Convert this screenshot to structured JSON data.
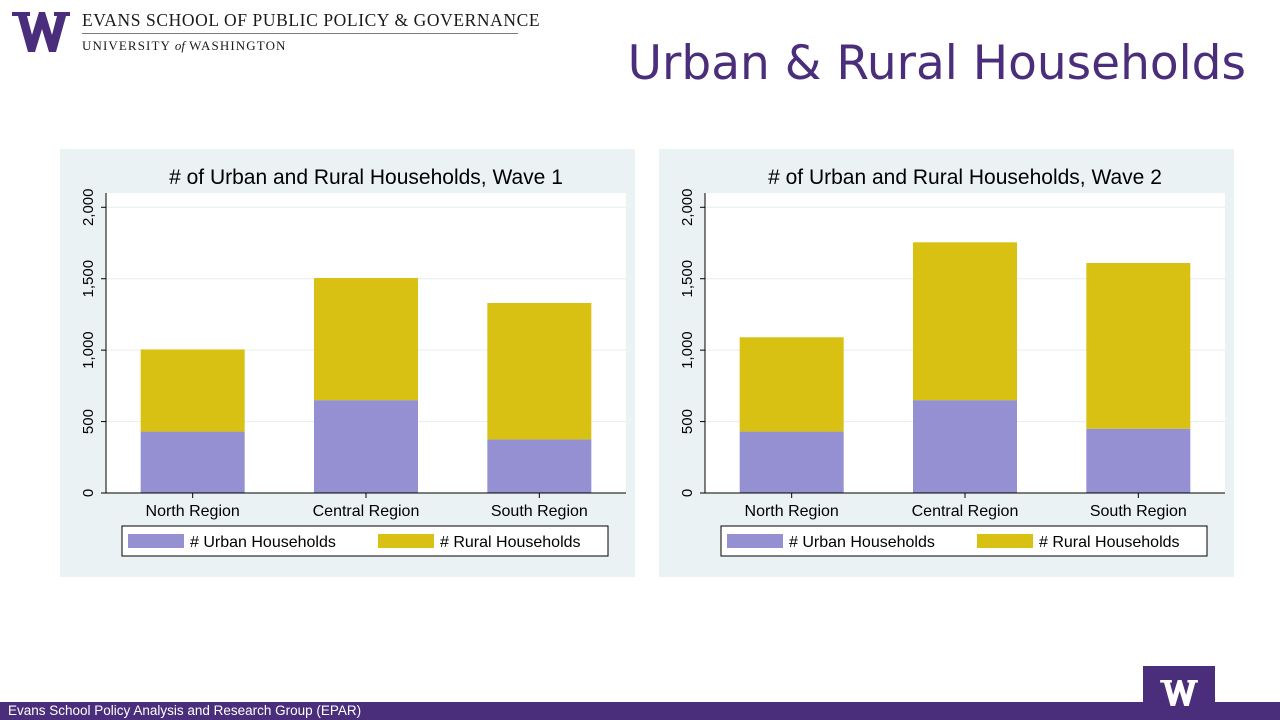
{
  "header": {
    "school_name": "EVANS SCHOOL OF PUBLIC POLICY & GOVERNANCE",
    "university_prefix": "UNIVERSITY",
    "university_of": "of",
    "university_suffix": "WASHINGTON",
    "logo_icon": "uw-w-logo-icon",
    "brand_color": "#4b2e7b"
  },
  "slide": {
    "title": "Urban & Rural Households"
  },
  "footer": {
    "text": "Evans School Policy Analysis and Research Group (EPAR)",
    "logo_icon": "uw-w-logo-icon"
  },
  "chart_data": [
    {
      "type": "bar",
      "stacked": true,
      "title": "# of Urban and Rural Households, Wave 1",
      "xlabel": "",
      "ylabel": "",
      "categories": [
        "North Region",
        "Central Region",
        "South Region"
      ],
      "series": [
        {
          "name": "# Urban Households",
          "values": [
            430,
            650,
            375
          ],
          "color": "#9590d2"
        },
        {
          "name": "# Rural Households",
          "values": [
            575,
            855,
            955
          ],
          "color": "#d9c113"
        }
      ],
      "ylim": [
        0,
        2100
      ],
      "yticks": [
        0,
        500,
        1000,
        1500,
        2000
      ],
      "ytick_labels": [
        "0",
        "500",
        "1,000",
        "1,500",
        "2,000"
      ],
      "grid": true,
      "legend": "bottom"
    },
    {
      "type": "bar",
      "stacked": true,
      "title": "# of Urban and Rural Households, Wave 2",
      "xlabel": "",
      "ylabel": "",
      "categories": [
        "North Region",
        "Central Region",
        "South Region"
      ],
      "series": [
        {
          "name": "# Urban Households",
          "values": [
            430,
            650,
            450
          ],
          "color": "#9590d2"
        },
        {
          "name": "# Rural Households",
          "values": [
            660,
            1105,
            1160
          ],
          "color": "#d9c113"
        }
      ],
      "ylim": [
        0,
        2100
      ],
      "yticks": [
        0,
        500,
        1000,
        1500,
        2000
      ],
      "ytick_labels": [
        "0",
        "500",
        "1,000",
        "1,500",
        "2,000"
      ],
      "grid": true,
      "legend": "bottom"
    }
  ]
}
